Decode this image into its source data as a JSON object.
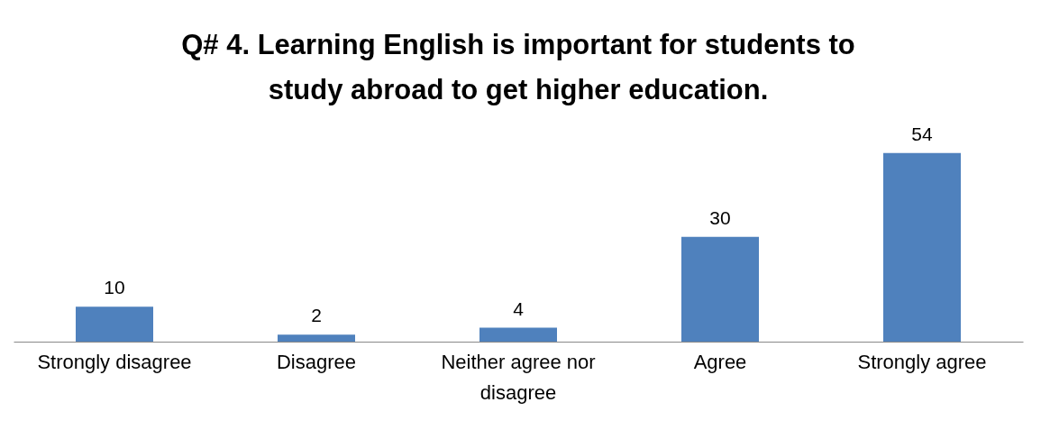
{
  "chart_data": {
    "type": "bar",
    "title": "Q# 4. Learning  English is important for students to study abroad to get higher education.",
    "categories": [
      "Strongly disagree",
      "Disagree",
      "Neither agree nor disagree",
      "Agree",
      "Strongly agree"
    ],
    "values": [
      10,
      2,
      4,
      30,
      54
    ],
    "color": "#4f81bd",
    "data_labels": true
  }
}
